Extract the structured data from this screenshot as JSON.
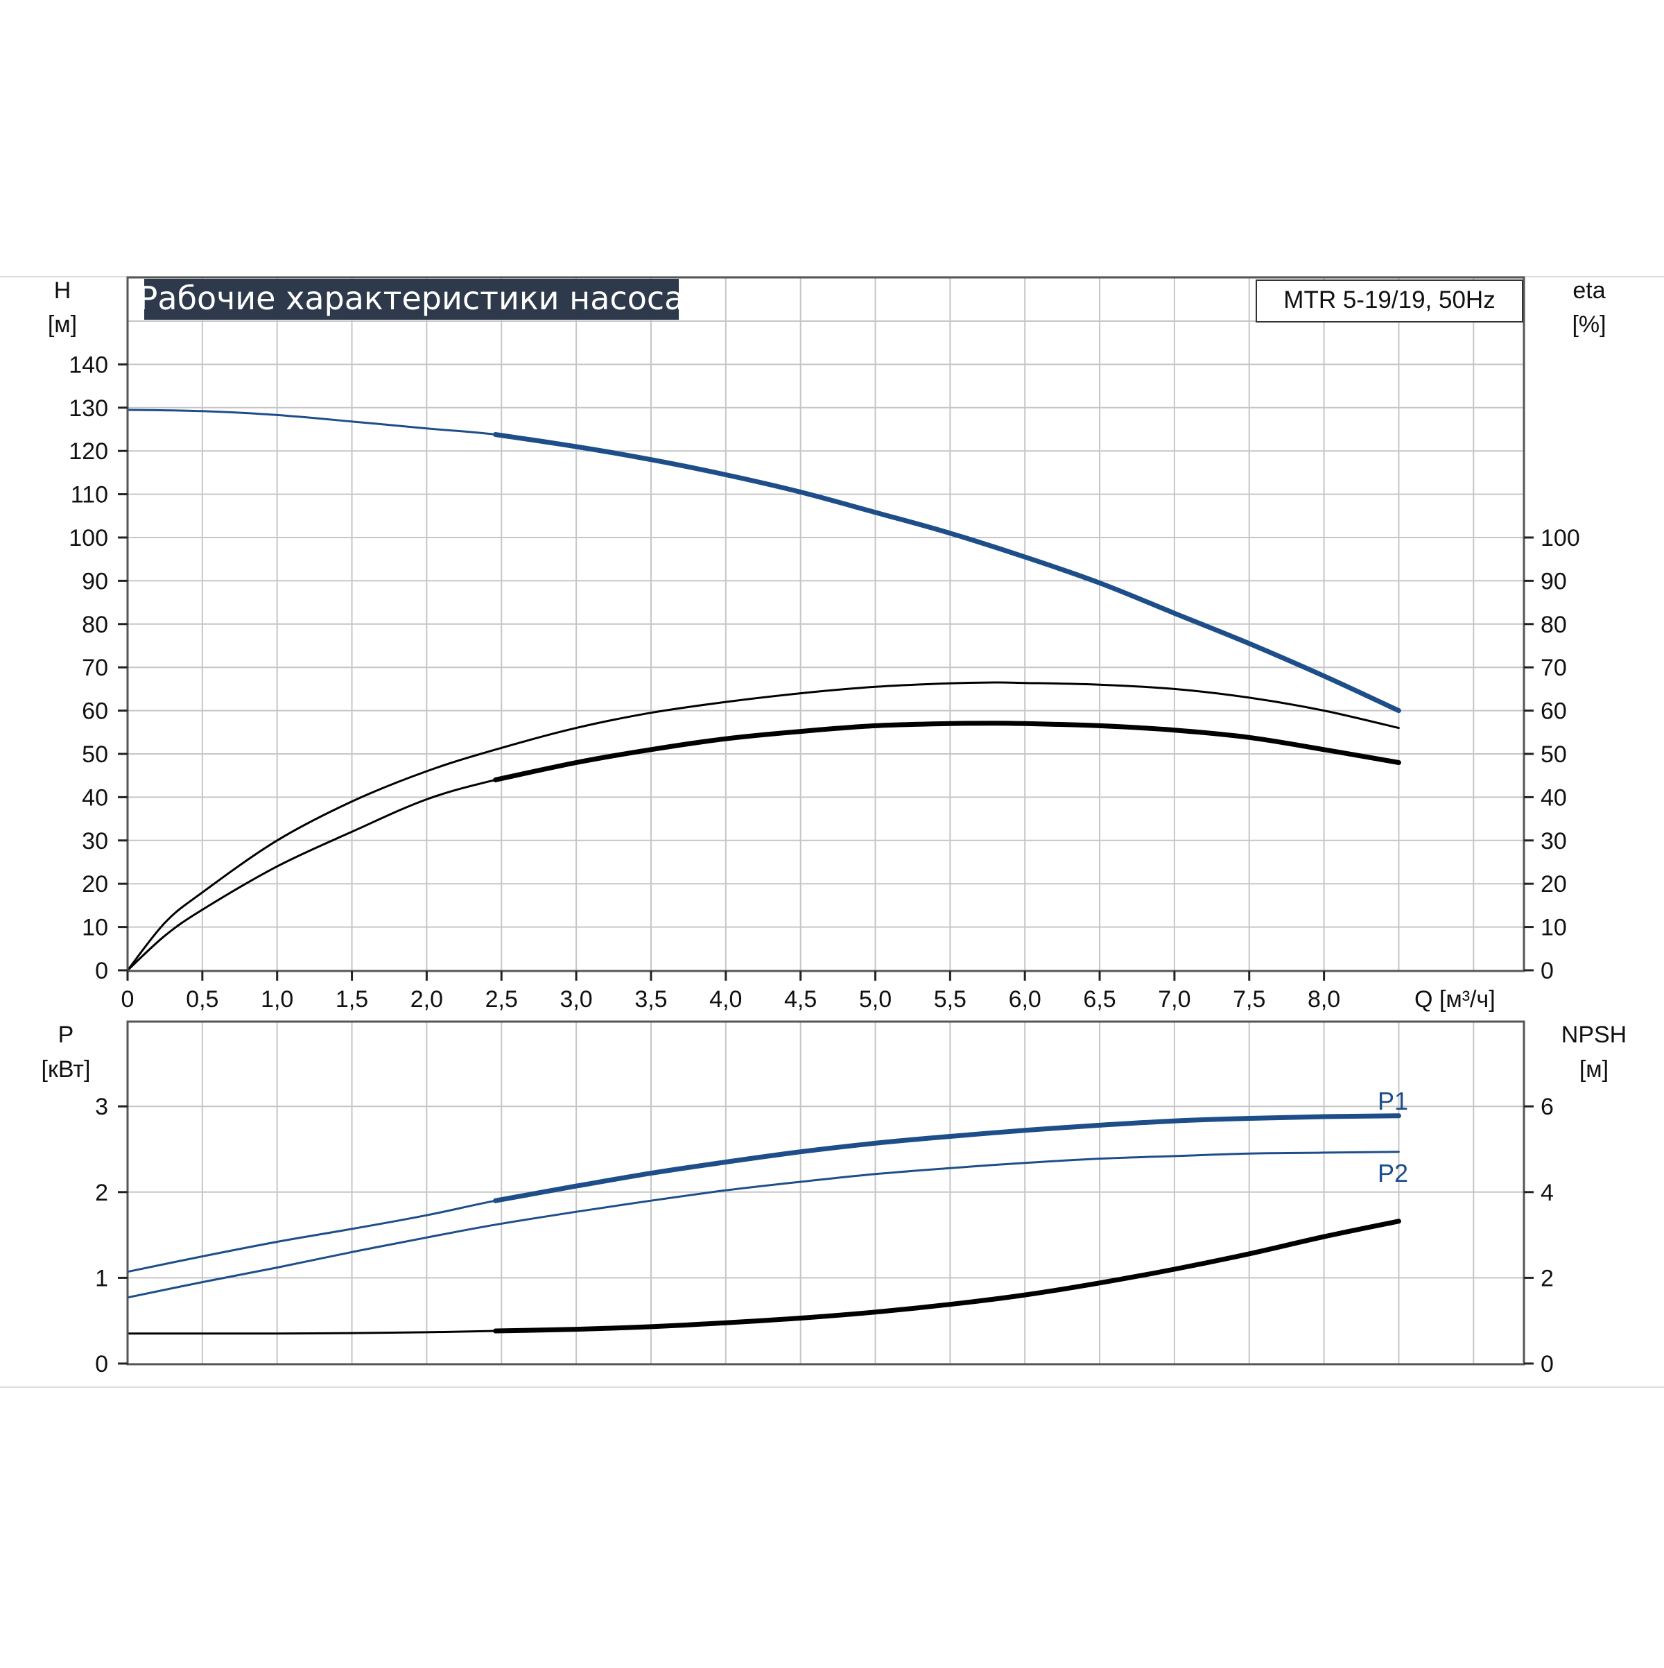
{
  "colors": {
    "blue": "#1d4e89",
    "black": "#000000",
    "grid": "#c6c6c6",
    "frame": "#555555",
    "title_bg": "#2e3a4c",
    "title_text": "#ffffff"
  },
  "chart_data": [
    {
      "type": "line",
      "title": "Рабочие характеристики насоса",
      "model": "MTR 5-19/19, 50Hz",
      "xlabel": "Q [м³/ч]",
      "x_ticks": [
        "0",
        "0,5",
        "1,0",
        "1,5",
        "2,0",
        "2,5",
        "3,0",
        "3,5",
        "4,0",
        "4,5",
        "5,0",
        "5,5",
        "6,0",
        "6,5",
        "7,0",
        "7,5",
        "8,0"
      ],
      "xlim": [
        0,
        9.3
      ],
      "y_left_label": [
        "H",
        "[м]"
      ],
      "y_left_ticks": [
        "0",
        "10",
        "20",
        "30",
        "40",
        "50",
        "60",
        "70",
        "80",
        "90",
        "100",
        "110",
        "120",
        "130",
        "140"
      ],
      "ylim_left": [
        0,
        160
      ],
      "y_right_label": [
        "eta",
        "[%]"
      ],
      "y_right_ticks": [
        "0",
        "10",
        "20",
        "30",
        "40",
        "50",
        "60",
        "70",
        "80",
        "90",
        "100"
      ],
      "grid": true,
      "series": [
        {
          "name": "H",
          "color": "blue",
          "x": [
            0,
            0.5,
            1.0,
            1.5,
            2.0,
            2.46,
            3.0,
            3.5,
            4.0,
            4.5,
            5.0,
            5.5,
            6.0,
            6.5,
            7.0,
            7.5,
            8.0,
            8.5
          ],
          "y": [
            129.5,
            129.2,
            128.3,
            126.8,
            125.2,
            123.8,
            121,
            118,
            114.5,
            110.5,
            105.8,
            101,
            95.5,
            89.5,
            82.5,
            75.5,
            68,
            60
          ],
          "thick_from": 2.46
        },
        {
          "name": "eta",
          "color": "black",
          "x": [
            0,
            0.25,
            0.5,
            1.0,
            1.5,
            2.0,
            2.46,
            3.0,
            3.5,
            4.0,
            4.5,
            5.0,
            5.5,
            5.8,
            6.0,
            6.5,
            7.0,
            7.5,
            8.0,
            8.5
          ],
          "y": [
            0,
            11,
            18,
            30,
            39,
            46,
            51,
            56,
            59.5,
            62,
            64,
            65.5,
            66.3,
            66.5,
            66.4,
            66,
            65,
            63,
            60,
            56
          ]
        },
        {
          "name": "eta_total",
          "color": "black",
          "x": [
            0,
            0.25,
            0.5,
            1.0,
            1.5,
            2.0,
            2.46,
            3.0,
            3.5,
            4.0,
            4.5,
            5.0,
            5.5,
            5.8,
            6.0,
            6.5,
            7.0,
            7.5,
            8.0,
            8.5
          ],
          "y": [
            0,
            8,
            14,
            24,
            32,
            39.5,
            44,
            48,
            51,
            53.5,
            55.2,
            56.5,
            57,
            57.1,
            57,
            56.5,
            55.5,
            53.8,
            51,
            48
          ],
          "thick_from": 2.46
        }
      ]
    },
    {
      "type": "line",
      "x_ticks": [],
      "xlim": [
        0,
        9.3
      ],
      "y_left_label": [
        "P",
        "[кВт]"
      ],
      "y_left_ticks": [
        "0",
        "1",
        "2",
        "3"
      ],
      "ylim_left": [
        0,
        4
      ],
      "y_right_label": [
        "NPSH",
        "[м]"
      ],
      "y_right_ticks": [
        "0",
        "2",
        "4",
        "6"
      ],
      "ylim_right": [
        0,
        8
      ],
      "grid": true,
      "series": [
        {
          "name": "P1",
          "color": "blue",
          "x": [
            0,
            0.5,
            1.0,
            1.5,
            2.0,
            2.46,
            3.0,
            3.5,
            4.0,
            4.5,
            5.0,
            5.5,
            6.0,
            6.5,
            7.0,
            7.5,
            8.0,
            8.5
          ],
          "y": [
            1.07,
            1.25,
            1.42,
            1.57,
            1.73,
            1.9,
            2.07,
            2.22,
            2.35,
            2.47,
            2.57,
            2.65,
            2.72,
            2.78,
            2.83,
            2.86,
            2.88,
            2.89
          ],
          "thick_from": 2.46
        },
        {
          "name": "P2",
          "color": "blue",
          "x": [
            0,
            0.5,
            1.0,
            1.5,
            2.0,
            2.46,
            3.0,
            3.5,
            4.0,
            4.5,
            5.0,
            5.5,
            6.0,
            6.5,
            7.0,
            7.5,
            8.0,
            8.5
          ],
          "y": [
            0.77,
            0.95,
            1.12,
            1.3,
            1.47,
            1.62,
            1.77,
            1.9,
            2.02,
            2.12,
            2.21,
            2.28,
            2.34,
            2.39,
            2.42,
            2.45,
            2.46,
            2.47
          ]
        },
        {
          "name": "NPSH",
          "color": "black",
          "x": [
            0,
            0.5,
            1.0,
            1.5,
            2.0,
            2.46,
            3.0,
            3.5,
            4.0,
            4.5,
            5.0,
            5.5,
            6.0,
            6.5,
            7.0,
            7.5,
            8.0,
            8.5
          ],
          "y": [
            0.7,
            0.7,
            0.7,
            0.71,
            0.73,
            0.76,
            0.8,
            0.86,
            0.95,
            1.06,
            1.2,
            1.38,
            1.6,
            1.88,
            2.2,
            2.56,
            2.96,
            3.32
          ],
          "y_axis": "right",
          "thick_from": 2.46
        }
      ]
    }
  ]
}
